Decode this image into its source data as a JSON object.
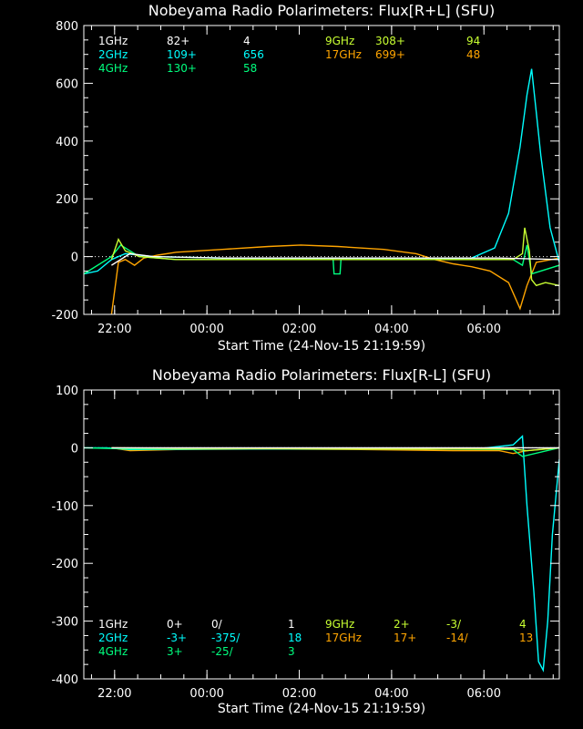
{
  "chart_data": [
    {
      "type": "line",
      "title": "Nobeyama Radio Polarimeters: Flux[R+L] (SFU)",
      "xlabel": "Start Time (24-Nov-15 21:19:59)",
      "ylabel": "",
      "x_tick_labels": [
        "22:00",
        "00:00",
        "02:00",
        "04:00",
        "06:00"
      ],
      "x_tick_hours": [
        0.667,
        2.667,
        4.667,
        6.667,
        8.667
      ],
      "x_range_hours": [
        0,
        10.3
      ],
      "ylim": [
        -200,
        800
      ],
      "y_ticks": [
        -200,
        0,
        200,
        400,
        600,
        800
      ],
      "y_tick_labels": [
        "-200",
        "0",
        "200",
        "400",
        "600",
        "800"
      ],
      "legend": [
        {
          "freq": "1GHz",
          "c1": "82+",
          "c2": "4",
          "color": "#ffffff"
        },
        {
          "freq": "2GHz",
          "c1": "109+",
          "c2": "656",
          "color": "#00ffff"
        },
        {
          "freq": "4GHz",
          "c1": "130+",
          "c2": "58",
          "color": "#00ff7f"
        },
        {
          "freq": "9GHz",
          "c1": "308+",
          "c2": "94",
          "color": "#c8ff32"
        },
        {
          "freq": "17GHz",
          "c1": "699+",
          "c2": "48",
          "color": "#ffa500"
        }
      ],
      "series": [
        {
          "color": "#ffa500",
          "x": [
            0.6,
            0.75,
            0.9,
            1.1,
            1.3,
            1.6,
            2,
            3,
            4,
            4.7,
            5.5,
            6.5,
            7.2,
            7.6,
            8,
            8.4,
            8.8,
            9.2,
            9.45,
            9.6,
            9.8,
            10.3
          ],
          "y": [
            -200,
            -20,
            -10,
            -30,
            -5,
            5,
            15,
            25,
            35,
            40,
            35,
            25,
            10,
            -10,
            -25,
            -35,
            -50,
            -90,
            -180,
            -100,
            -20,
            -5
          ]
        },
        {
          "color": "#00ffff",
          "x": [
            0,
            0.3,
            0.6,
            0.9,
            1.5,
            3,
            5,
            7,
            8.4,
            8.9,
            9.2,
            9.45,
            9.6,
            9.7,
            9.8,
            9.9,
            10.1,
            10.3
          ],
          "y": [
            -60,
            -50,
            -10,
            10,
            0,
            -5,
            -5,
            -5,
            -5,
            30,
            150,
            380,
            560,
            650,
            500,
            350,
            100,
            -20
          ]
        },
        {
          "color": "#00ff7f",
          "x": [
            0,
            0.6,
            0.8,
            1.2,
            2,
            4,
            5.4,
            5.42,
            5.55,
            5.57,
            7,
            9.3,
            9.5,
            9.6,
            9.7,
            10.3
          ],
          "y": [
            -60,
            0,
            40,
            0,
            -10,
            -10,
            -10,
            -60,
            -60,
            -10,
            -10,
            -10,
            -30,
            40,
            -60,
            -30
          ]
        },
        {
          "color": "#c8ff32",
          "x": [
            0.6,
            0.75,
            0.9,
            1.2,
            2,
            5,
            8,
            9.3,
            9.5,
            9.55,
            9.65,
            9.7,
            9.8,
            10,
            10.3
          ],
          "y": [
            -10,
            60,
            20,
            0,
            -10,
            -10,
            -10,
            -10,
            10,
            100,
            20,
            -80,
            -100,
            -90,
            -100
          ]
        },
        {
          "color": "#ffffff",
          "x": [
            0.6,
            1,
            1.5,
            3,
            5,
            7,
            9,
            10.3
          ],
          "y": [
            -30,
            10,
            0,
            -5,
            -5,
            -5,
            -5,
            -10
          ]
        }
      ]
    },
    {
      "type": "line",
      "title": "Nobeyama Radio Polarimeters: Flux[R-L] (SFU)",
      "xlabel": "Start Time (24-Nov-15 21:19:59)",
      "ylabel": "",
      "x_tick_labels": [
        "22:00",
        "00:00",
        "02:00",
        "04:00",
        "06:00"
      ],
      "x_tick_hours": [
        0.667,
        2.667,
        4.667,
        6.667,
        8.667
      ],
      "x_range_hours": [
        0,
        10.3
      ],
      "ylim": [
        -400,
        100
      ],
      "y_ticks": [
        -400,
        -300,
        -200,
        -100,
        0,
        100
      ],
      "y_tick_labels": [
        "-400",
        "-300",
        "-200",
        "-100",
        "0",
        "100"
      ],
      "legend": [
        {
          "freq": "1GHz",
          "c1": "0+",
          "c2": "0/",
          "c3": "1",
          "color": "#ffffff"
        },
        {
          "freq": "2GHz",
          "c1": "-3+",
          "c2": "-375/",
          "c3": "18",
          "color": "#00ffff"
        },
        {
          "freq": "4GHz",
          "c1": "3+",
          "c2": "-25/",
          "c3": "3",
          "color": "#00ff7f"
        },
        {
          "freq": "9GHz",
          "c1": "2+",
          "c2": "-3/",
          "c3": "4",
          "color": "#c8ff32"
        },
        {
          "freq": "17GHz",
          "c1": "17+",
          "c2": "-14/",
          "c3": "13",
          "color": "#ffa500"
        }
      ],
      "series": [
        {
          "color": "#ffa500",
          "x": [
            0.6,
            1,
            2,
            4,
            6,
            8,
            9,
            9.3,
            9.6,
            10.3
          ],
          "y": [
            0,
            -5,
            -3,
            -2,
            -3,
            -5,
            -5,
            -10,
            -5,
            0
          ]
        },
        {
          "color": "#00ffff",
          "x": [
            0,
            0.5,
            1,
            3,
            6,
            8.5,
            9.3,
            9.5,
            9.6,
            9.75,
            9.85,
            9.95,
            10.05,
            10.15,
            10.3
          ],
          "y": [
            0,
            0,
            -3,
            -2,
            -2,
            -2,
            5,
            20,
            -100,
            -250,
            -370,
            -385,
            -300,
            -150,
            -20
          ]
        },
        {
          "color": "#00ff7f",
          "x": [
            0,
            1,
            5,
            9.3,
            9.5,
            10.3
          ],
          "y": [
            0,
            -2,
            -1,
            -3,
            -15,
            0
          ]
        },
        {
          "color": "#c8ff32",
          "x": [
            0.6,
            2,
            6,
            9.3,
            9.6,
            10.3
          ],
          "y": [
            0,
            -1,
            -2,
            -2,
            -5,
            0
          ]
        },
        {
          "color": "#ffffff",
          "x": [
            0.6,
            5,
            10.3
          ],
          "y": [
            0,
            0,
            0
          ]
        }
      ]
    }
  ]
}
